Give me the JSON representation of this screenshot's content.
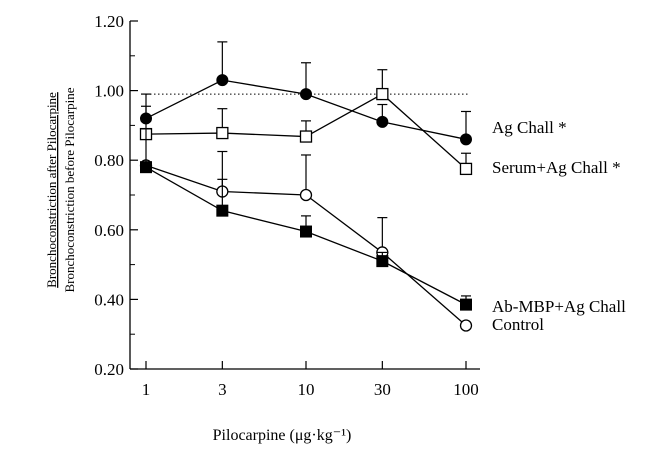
{
  "chart_data": {
    "type": "line",
    "title": "",
    "xlabel": "Pilocarpine (μg·kg⁻¹)",
    "ylabel_numerator": "Bronchoconstriction after Pilocarpine",
    "ylabel_denominator": "Bronchoconstriction before Pilocarpine",
    "x": [
      1,
      3,
      10,
      30,
      100
    ],
    "x_ticks": [
      "1",
      "3",
      "10",
      "30",
      "100"
    ],
    "x_scale": "log",
    "ylim": [
      0.2,
      1.2
    ],
    "y_ticks": [
      "0.20",
      "0.40",
      "0.60",
      "0.80",
      "1.00",
      "1.20"
    ],
    "reference_line": 0.99,
    "grid": false,
    "legend_placement": "right, next to last points",
    "series": [
      {
        "name": "Ag Chall *",
        "marker": "filled-circle",
        "color": "#000000",
        "values": [
          0.92,
          1.03,
          0.99,
          0.91,
          0.86
        ],
        "error": [
          0.07,
          0.11,
          0.09,
          0.05,
          0.08
        ]
      },
      {
        "name": "Serum+Ag Chall *",
        "marker": "open-square",
        "color": "#000000",
        "values": [
          0.875,
          0.878,
          0.868,
          0.99,
          0.775
        ],
        "error": [
          0.08,
          0.07,
          0.045,
          0.07,
          0.045
        ]
      },
      {
        "name": "Control",
        "marker": "open-circle",
        "color": "#000000",
        "values": [
          0.785,
          0.71,
          0.7,
          0.535,
          0.325
        ],
        "error": [
          0.0,
          0.115,
          0.115,
          0.1,
          0.0
        ]
      },
      {
        "name": "Ab-MBP+Ag Chall",
        "marker": "filled-square",
        "color": "#000000",
        "values": [
          0.78,
          0.655,
          0.595,
          0.51,
          0.385
        ],
        "error": [
          0.11,
          0.09,
          0.045,
          0.025,
          0.025
        ]
      }
    ]
  }
}
